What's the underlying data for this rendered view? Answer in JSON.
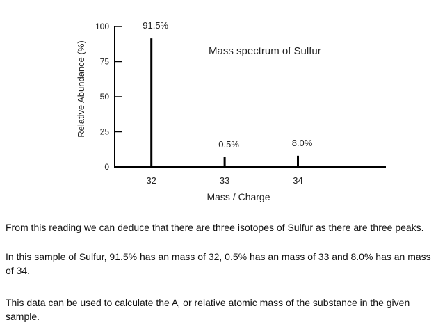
{
  "chart_data": {
    "type": "bar",
    "title": "Mass spectrum of Sulfur",
    "xlabel": "Mass / Charge",
    "ylabel": "Relative Abundance (%)",
    "categories": [
      "32",
      "33",
      "34"
    ],
    "values": [
      91.5,
      0.5,
      8.0
    ],
    "data_labels": [
      "91.5%",
      "0.5%",
      "8.0%"
    ],
    "yticks": [
      0,
      25,
      50,
      75,
      100
    ],
    "ylim": [
      0,
      100
    ],
    "xlim": [
      31.5,
      35.2
    ],
    "grid": false,
    "legend": "none"
  },
  "text": {
    "p1": "From this reading we can deduce that there are three isotopes of Sulfur as there are three peaks.",
    "p2": "In this sample of Sulfur, 91.5% has an mass of 32, 0.5% has an mass of 33 and 8.0% has an mass of 34.",
    "p3_before": "This data can be used to calculate the A",
    "p3_sub": "r",
    "p3_after": " or relative atomic mass of the substance in the given sample."
  }
}
